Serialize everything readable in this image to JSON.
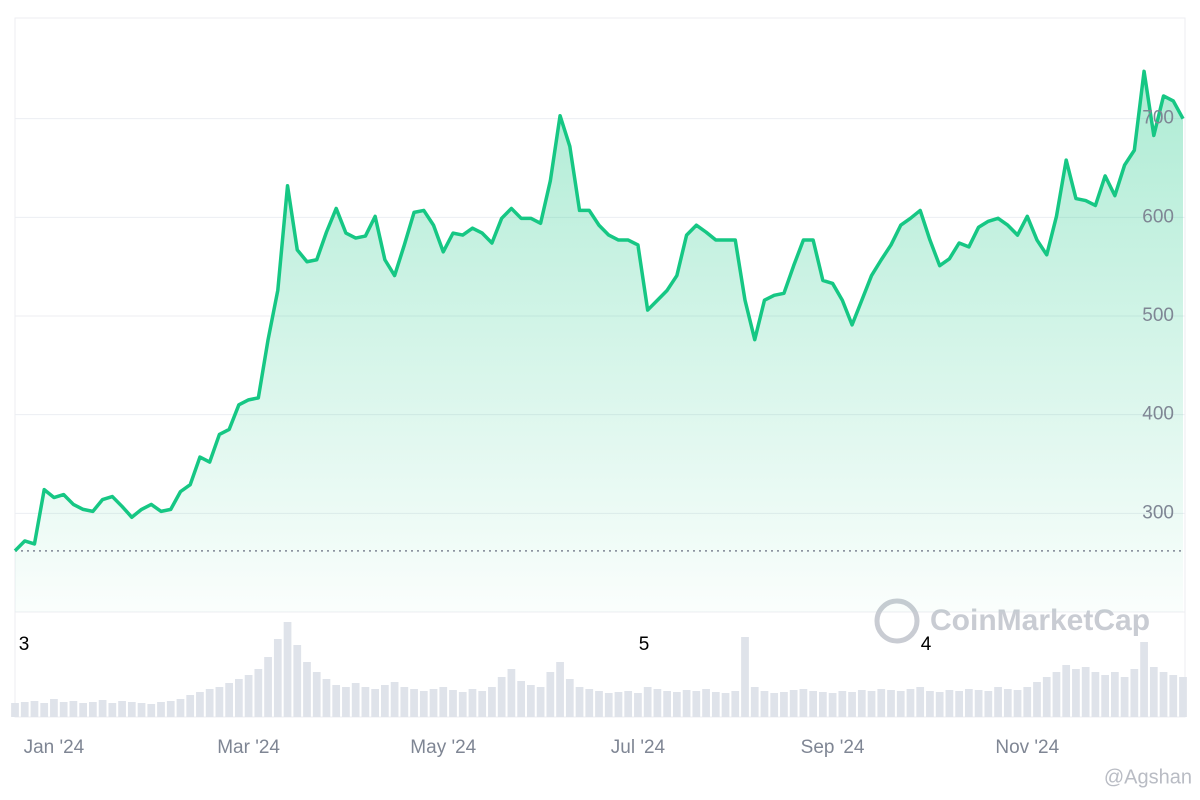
{
  "chart_data": {
    "type": "line",
    "categories": [
      null,
      null,
      null,
      null,
      "Jan '24",
      null,
      null,
      null,
      null,
      null,
      null,
      null,
      null,
      null,
      null,
      null,
      null,
      null,
      null,
      null,
      null,
      null,
      null,
      null,
      "Mar '24",
      null,
      null,
      null,
      null,
      null,
      null,
      null,
      null,
      null,
      null,
      null,
      null,
      null,
      null,
      null,
      null,
      null,
      null,
      null,
      "May '24",
      null,
      null,
      null,
      null,
      null,
      null,
      null,
      null,
      null,
      null,
      null,
      null,
      null,
      null,
      null,
      null,
      null,
      null,
      null,
      "Jul '24",
      null,
      null,
      null,
      null,
      null,
      null,
      null,
      null,
      null,
      null,
      null,
      null,
      null,
      null,
      null,
      null,
      null,
      null,
      null,
      "Sep '24",
      null,
      null,
      null,
      null,
      null,
      null,
      null,
      null,
      null,
      null,
      null,
      null,
      null,
      null,
      null,
      null,
      null,
      null,
      null,
      "Nov '24",
      null,
      null,
      null,
      null,
      null,
      null,
      null,
      null,
      null,
      null,
      null,
      null,
      null,
      null,
      null,
      null
    ],
    "series": [
      {
        "color": "#16c784",
        "values": [
          262,
          272,
          269,
          324,
          316,
          319,
          309,
          304,
          302,
          314,
          317,
          307,
          296,
          304,
          309,
          302,
          304,
          322,
          329,
          357,
          352,
          380,
          385,
          410,
          415,
          417,
          476,
          526,
          632,
          567,
          555,
          557,
          585,
          609,
          584,
          579,
          581,
          601,
          557,
          541,
          572,
          605,
          607,
          592,
          565,
          584,
          582,
          589,
          584,
          574,
          599,
          609,
          599,
          599,
          594,
          637,
          703,
          672,
          607,
          607,
          592,
          582,
          577,
          577,
          572,
          506,
          516,
          526,
          541,
          582,
          592,
          585,
          577,
          577,
          577,
          516,
          476,
          516,
          521,
          523,
          551,
          577,
          577,
          536,
          533,
          516,
          491,
          516,
          541,
          557,
          572,
          592,
          599,
          607,
          577,
          551,
          558,
          574,
          570,
          590,
          596,
          599,
          592,
          582,
          601,
          577,
          562,
          601,
          658,
          619,
          617,
          612,
          642,
          622,
          653,
          668,
          748,
          683,
          723,
          718,
          700
        ]
      }
    ],
    "volume": {
      "color": "#dfe3ea",
      "ylim": [
        0,
        100
      ],
      "values": [
        14,
        15,
        16,
        14,
        18,
        15,
        16,
        14,
        15,
        17,
        14,
        16,
        15,
        14,
        13,
        15,
        16,
        18,
        22,
        25,
        28,
        30,
        34,
        38,
        42,
        48,
        60,
        78,
        95,
        72,
        55,
        45,
        38,
        32,
        30,
        34,
        30,
        28,
        32,
        35,
        30,
        28,
        26,
        28,
        30,
        27,
        25,
        28,
        26,
        30,
        40,
        48,
        36,
        32,
        30,
        45,
        55,
        38,
        30,
        28,
        26,
        24,
        25,
        26,
        24,
        30,
        28,
        26,
        25,
        27,
        26,
        28,
        25,
        24,
        26,
        80,
        30,
        26,
        24,
        25,
        27,
        28,
        26,
        25,
        24,
        26,
        25,
        27,
        26,
        28,
        27,
        26,
        28,
        30,
        26,
        25,
        27,
        26,
        28,
        27,
        26,
        30,
        28,
        27,
        30,
        35,
        40,
        45,
        52,
        48,
        50,
        45,
        42,
        45,
        40,
        48,
        75,
        50,
        45,
        42,
        40
      ]
    },
    "ylim": [
      200,
      800
    ],
    "yticks": [
      300,
      400,
      500,
      600,
      700
    ],
    "grid": true,
    "annotations": [
      {
        "text": "3"
      },
      {
        "text": "5"
      },
      {
        "text": "4"
      }
    ],
    "watermark": "CoinMarketCap",
    "credit": "@Agshan"
  }
}
